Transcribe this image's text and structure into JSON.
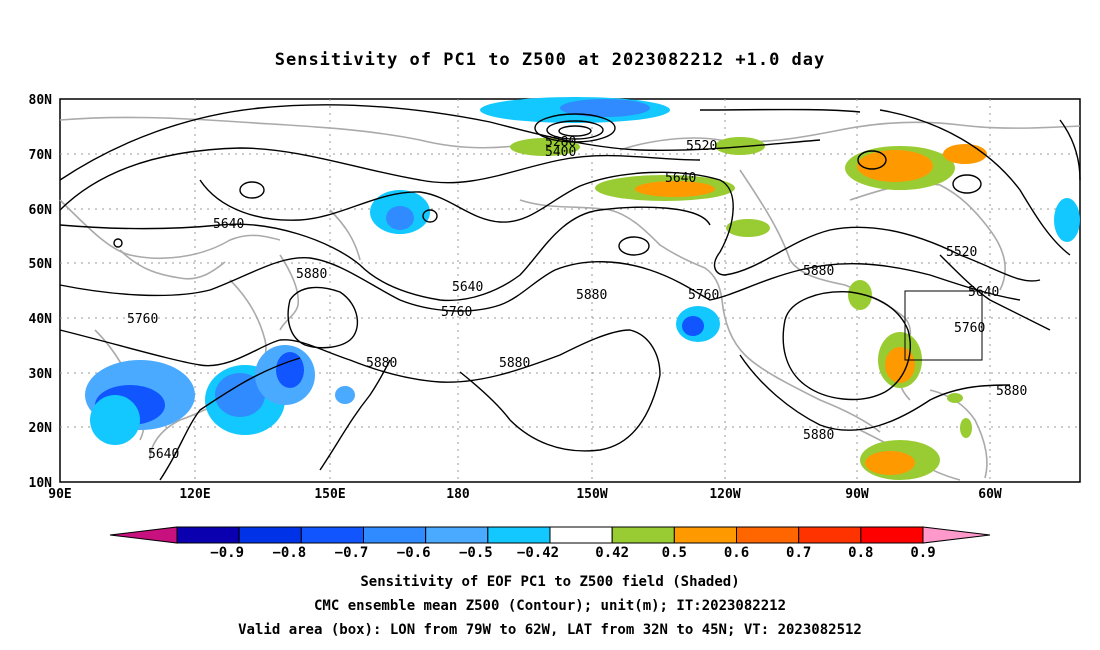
{
  "title": "Sensitivity of PC1 to Z500 at 2023082212 +1.0 day",
  "map": {
    "lat_labels": [
      "80N",
      "70N",
      "60N",
      "50N",
      "40N",
      "30N",
      "20N",
      "10N"
    ],
    "lon_labels": [
      "90E",
      "120E",
      "150E",
      "180",
      "150W",
      "120W",
      "90W",
      "60W"
    ],
    "contour_labels": [
      "5280",
      "5400",
      "5520",
      "5640",
      "5640",
      "5640",
      "5640",
      "5880",
      "5880",
      "5880",
      "5880",
      "5880",
      "5880",
      "5760",
      "5760",
      "5760",
      "5760",
      "5520",
      "5640",
      "5880"
    ],
    "box": {
      "lon_from": "79W",
      "lon_to": "62W",
      "lat_from": "32N",
      "lat_to": "45N"
    }
  },
  "colorbar": {
    "labels": [
      "−0.9",
      "−0.8",
      "−0.7",
      "−0.6",
      "−0.5",
      "−0.42",
      "0.42",
      "0.5",
      "0.6",
      "0.7",
      "0.8",
      "0.9"
    ],
    "colors": [
      "#c8107f",
      "#0a00b0",
      "#0033e8",
      "#1155ff",
      "#2f8bff",
      "#4aaaff",
      "#12c8ff",
      "#ffffff",
      "#99cc33",
      "#ff9900",
      "#ff6600",
      "#ff3300",
      "#ff0000",
      "#ff99cc"
    ]
  },
  "captions": [
    "Sensitivity of EOF PC1 to Z500 field (Shaded)",
    "CMC ensemble mean Z500 (Contour); unit(m); IT:2023082212",
    "Valid area (box): LON from 79W to 62W, LAT from 32N to 45N; VT: 2023082512"
  ],
  "colors": {
    "land": "#aaaaaa",
    "contour": "#000000",
    "grid": "#999999"
  }
}
